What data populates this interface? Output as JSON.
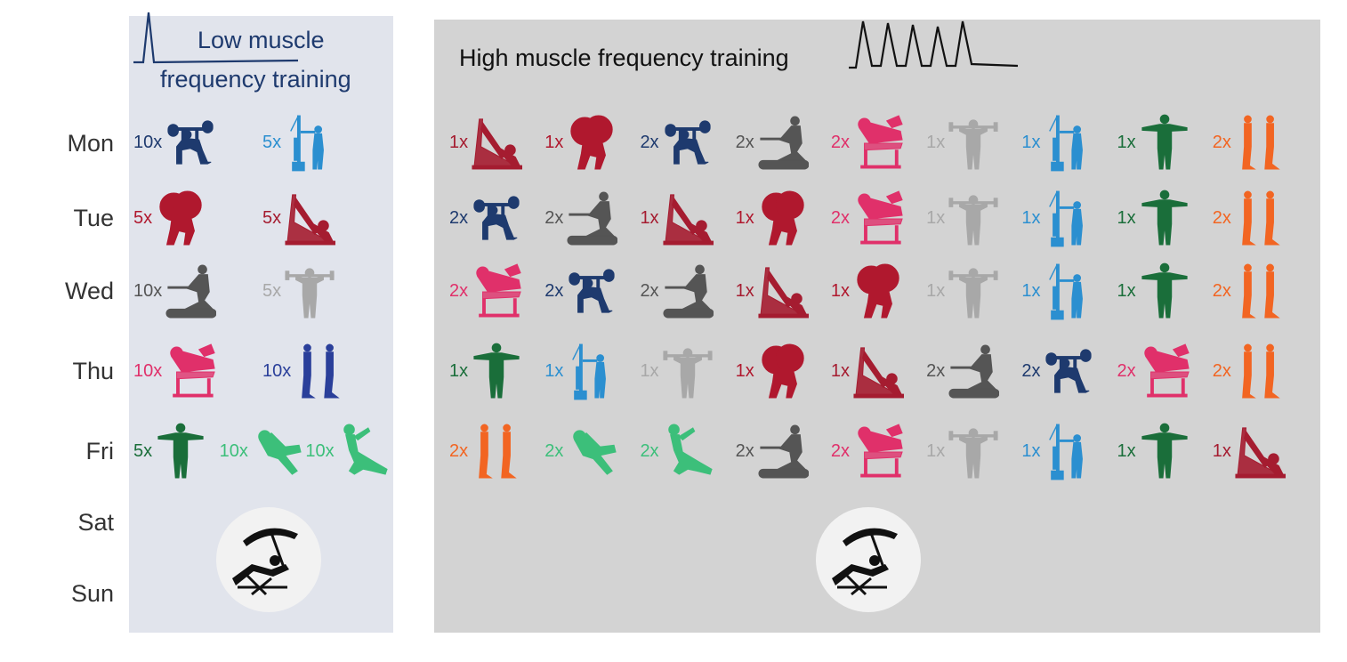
{
  "days": [
    "Mon",
    "Tue",
    "Wed",
    "Thu",
    "Fri",
    "Sat",
    "Sun"
  ],
  "low_panel": {
    "title_line1": "Low muscle",
    "title_line2": "frequency training",
    "schedule": [
      [
        {
          "reps": "10x",
          "exercise": "bench-press"
        },
        {
          "reps": "5x",
          "exercise": "cable-pulldown"
        }
      ],
      [
        {
          "reps": "5x",
          "exercise": "squat"
        },
        {
          "reps": "5x",
          "exercise": "leg-press"
        }
      ],
      [
        {
          "reps": "10x",
          "exercise": "rowing"
        },
        {
          "reps": "5x",
          "exercise": "shoulder-press"
        }
      ],
      [
        {
          "reps": "10x",
          "exercise": "leg-curl"
        },
        {
          "reps": "10x",
          "exercise": "calf-raise",
          "color": "#2a3f9a"
        }
      ],
      [
        {
          "reps": "5x",
          "exercise": "lateral-raise"
        },
        {
          "reps": "10x",
          "exercise": "crunch"
        },
        {
          "reps": "10x",
          "exercise": "leg-raise"
        }
      ]
    ]
  },
  "high_panel": {
    "title": "High muscle frequency training",
    "schedule": [
      [
        {
          "reps": "1x",
          "exercise": "leg-press"
        },
        {
          "reps": "1x",
          "exercise": "squat"
        },
        {
          "reps": "2x",
          "exercise": "bench-press"
        },
        {
          "reps": "2x",
          "exercise": "rowing"
        },
        {
          "reps": "2x",
          "exercise": "leg-curl"
        },
        {
          "reps": "1x",
          "exercise": "shoulder-press"
        },
        {
          "reps": "1x",
          "exercise": "cable-pulldown"
        },
        {
          "reps": "1x",
          "exercise": "lateral-raise"
        },
        {
          "reps": "2x",
          "exercise": "calf-raise"
        }
      ],
      [
        {
          "reps": "2x",
          "exercise": "bench-press"
        },
        {
          "reps": "2x",
          "exercise": "rowing"
        },
        {
          "reps": "1x",
          "exercise": "leg-press"
        },
        {
          "reps": "1x",
          "exercise": "squat"
        },
        {
          "reps": "2x",
          "exercise": "leg-curl"
        },
        {
          "reps": "1x",
          "exercise": "shoulder-press"
        },
        {
          "reps": "1x",
          "exercise": "cable-pulldown"
        },
        {
          "reps": "1x",
          "exercise": "lateral-raise"
        },
        {
          "reps": "2x",
          "exercise": "calf-raise"
        }
      ],
      [
        {
          "reps": "2x",
          "exercise": "leg-curl"
        },
        {
          "reps": "2x",
          "exercise": "bench-press"
        },
        {
          "reps": "2x",
          "exercise": "rowing"
        },
        {
          "reps": "1x",
          "exercise": "leg-press"
        },
        {
          "reps": "1x",
          "exercise": "squat"
        },
        {
          "reps": "1x",
          "exercise": "shoulder-press"
        },
        {
          "reps": "1x",
          "exercise": "cable-pulldown"
        },
        {
          "reps": "1x",
          "exercise": "lateral-raise"
        },
        {
          "reps": "2x",
          "exercise": "calf-raise"
        }
      ],
      [
        {
          "reps": "1x",
          "exercise": "lateral-raise"
        },
        {
          "reps": "1x",
          "exercise": "cable-pulldown"
        },
        {
          "reps": "1x",
          "exercise": "shoulder-press"
        },
        {
          "reps": "1x",
          "exercise": "squat"
        },
        {
          "reps": "1x",
          "exercise": "leg-press"
        },
        {
          "reps": "2x",
          "exercise": "rowing"
        },
        {
          "reps": "2x",
          "exercise": "bench-press"
        },
        {
          "reps": "2x",
          "exercise": "leg-curl"
        },
        {
          "reps": "2x",
          "exercise": "calf-raise"
        }
      ],
      [
        {
          "reps": "2x",
          "exercise": "calf-raise"
        },
        {
          "reps": "2x",
          "exercise": "crunch"
        },
        {
          "reps": "2x",
          "exercise": "leg-raise"
        },
        {
          "reps": "2x",
          "exercise": "rowing"
        },
        {
          "reps": "2x",
          "exercise": "leg-curl"
        },
        {
          "reps": "1x",
          "exercise": "shoulder-press"
        },
        {
          "reps": "1x",
          "exercise": "cable-pulldown"
        },
        {
          "reps": "1x",
          "exercise": "lateral-raise"
        },
        {
          "reps": "1x",
          "exercise": "leg-press"
        }
      ]
    ]
  },
  "colors": {
    "bench-press": "#1e3a6e",
    "cable-pulldown": "#2b8fd0",
    "squat": "#b0182e",
    "leg-press": "#a51c30",
    "rowing": "#555555",
    "shoulder-press": "#a8a8a8",
    "leg-curl": "#e0306a",
    "calf-raise": "#f26522",
    "lateral-raise": "#1a6e3a",
    "crunch": "#3cbf7a",
    "leg-raise": "#3cbf7a",
    "low-title": "#1e3a6e",
    "low-panel": "#e1e4ec",
    "high-panel": "#d3d3d3"
  },
  "rest_icon": "beach-chair-umbrella-icon"
}
